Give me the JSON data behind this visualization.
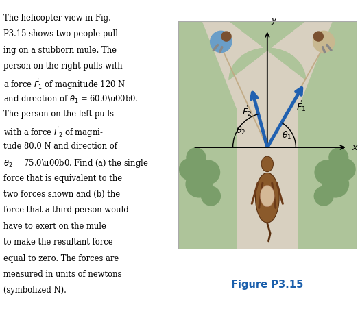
{
  "fig_width": 5.25,
  "fig_height": 4.51,
  "dpi": 100,
  "text_color": "#000000",
  "figure_label_color": "#1a5fac",
  "arrow_color": "#2060b0",
  "bg_color": "#ffffff",
  "theta1_deg": 60.0,
  "theta2_deg": 75.0,
  "F1_label": "$\\vec{F}_1$",
  "F2_label": "$\\vec{F}_2$",
  "theta1_label": "$\\theta_1$",
  "theta2_label": "$\\theta_2$",
  "x_label": "$x$",
  "y_label": "$y$",
  "figure_label": "Figure P3.15",
  "road_color": "#d8d0c0",
  "grass_color": "#aec49a",
  "grass_dark": "#7a9e6a",
  "border_color": "#cccccc",
  "lines": [
    "The helicopter view in Fig.",
    "P3.15 shows two people pull-",
    "ing on a stubborn mule. The",
    "person on the right pulls with",
    "a force $\\vec{F}_1$ of magnitude 120 N",
    "and direction of $\\theta_1$ = 60.0\\u00b0.",
    "The person on the left pulls",
    "with a force $\\vec{F}_2$ of magni-",
    "tude 80.0 N and direction of",
    "$\\theta_2$ = 75.0\\u00b0. Find (a) the single",
    "force that is equivalent to the",
    "two forces shown and (b) the",
    "force that a third person would",
    "have to exert on the mule",
    "to make the resultant force",
    "equal to zero. The forces are",
    "measured in units of newtons",
    "(symbolized N)."
  ]
}
